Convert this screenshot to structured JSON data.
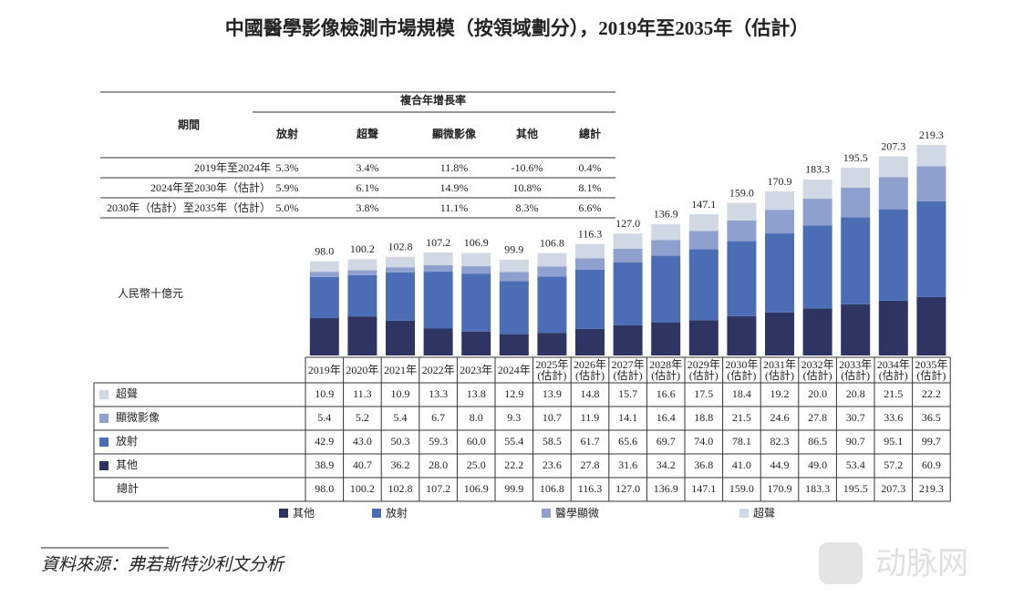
{
  "chart_data": {
    "type": "stacked-bar",
    "title": "中國醫學影像檢測市場規模（按領域劃分），2019年至2035年（估計）",
    "unit_label": "人民幣十億元",
    "categories": [
      "2019年",
      "2020年",
      "2021年",
      "2022年",
      "2023年",
      "2024年",
      "2025年(估計)",
      "2026年(估計)",
      "2027年(估計)",
      "2028年(估計)",
      "2029年(估計)",
      "2030年(估計)",
      "2031年(估計)",
      "2032年(估計)",
      "2033年(估計)",
      "2034年(估計)",
      "2035年(估計)"
    ],
    "series": [
      {
        "name": "其他",
        "table_label": "其他",
        "color": "#2e3563",
        "values": [
          38.9,
          40.7,
          36.2,
          28,
          25,
          22.2,
          23.6,
          27.8,
          31.6,
          34.2,
          36.8,
          41,
          44.9,
          49,
          53.4,
          57.2,
          60.9
        ],
        "value_labels": [
          "38.9",
          "40.7",
          "36.2",
          "28.0",
          "25.0",
          "22.2",
          "23.6",
          "27.8",
          "31.6",
          "34.2",
          "36.8",
          "41.0",
          "44.9",
          "49.0",
          "53.4",
          "57.2",
          "60.9"
        ]
      },
      {
        "name": "放射",
        "table_label": "放射",
        "color": "#4a6db5",
        "values": [
          42.9,
          43,
          50.3,
          59.3,
          60,
          55.4,
          58.5,
          61.7,
          65.6,
          69.7,
          74,
          78.1,
          82.3,
          86.5,
          90.7,
          95.1,
          99.7
        ],
        "value_labels": [
          "42.9",
          "43.0",
          "50.3",
          "59.3",
          "60.0",
          "55.4",
          "58.5",
          "61.7",
          "65.6",
          "69.7",
          "74.0",
          "78.1",
          "82.3",
          "86.5",
          "90.7",
          "95.1",
          "99.7"
        ]
      },
      {
        "name": "醫學顯微",
        "table_label": "顯微影像",
        "color": "#8fa0cf",
        "values": [
          5.4,
          5.2,
          5.4,
          6.7,
          8,
          9.3,
          10.7,
          11.9,
          14.1,
          16.4,
          18.8,
          21.5,
          24.6,
          27.8,
          30.7,
          33.6,
          36.5
        ],
        "value_labels": [
          "5.4",
          "5.2",
          "5.4",
          "6.7",
          "8.0",
          "9.3",
          "10.7",
          "11.9",
          "14.1",
          "16.4",
          "18.8",
          "21.5",
          "24.6",
          "27.8",
          "30.7",
          "33.6",
          "36.5"
        ]
      },
      {
        "name": "超聲",
        "table_label": "超聲",
        "color": "#cfd8e3",
        "values": [
          10.9,
          11.3,
          10.9,
          13.3,
          13.8,
          12.9,
          13.9,
          14.8,
          15.7,
          16.6,
          17.5,
          18.4,
          19.2,
          20,
          20.8,
          21.5,
          22.2
        ],
        "value_labels": [
          "10.9",
          "11.3",
          "10.9",
          "13.3",
          "13.8",
          "12.9",
          "13.9",
          "14.8",
          "15.7",
          "16.6",
          "17.5",
          "18.4",
          "19.2",
          "20.0",
          "20.8",
          "21.5",
          "22.2"
        ]
      }
    ],
    "total_label": "總計",
    "totals": [
      98,
      100.2,
      102.8,
      107.2,
      106.9,
      99.9,
      106.8,
      116.3,
      127,
      136.9,
      147.1,
      159,
      170.9,
      183.3,
      195.5,
      207.3,
      219.3
    ],
    "total_labels": [
      "98.0",
      "100.2",
      "102.8",
      "107.2",
      "106.9",
      "99.9",
      "106.8",
      "116.3",
      "127.0",
      "136.9",
      "147.1",
      "159.0",
      "170.9",
      "183.3",
      "195.5",
      "207.3",
      "219.3"
    ]
  },
  "cagr_table": {
    "group_header": "複合年增長率",
    "period_header": "期間",
    "columns": [
      "放射",
      "超聲",
      "顯微影像",
      "其他",
      "總計"
    ],
    "rows": [
      {
        "period": "2019年至2024年",
        "values": [
          "5.3%",
          "3.4%",
          "11.8%",
          "-10.6%",
          "0.4%"
        ]
      },
      {
        "period": "2024年至2030年（估計）",
        "values": [
          "5.9%",
          "6.1%",
          "14.9%",
          "10.8%",
          "8.1%"
        ]
      },
      {
        "period": "2030年（估計）至2035年（估計）",
        "values": [
          "5.0%",
          "3.8%",
          "11.1%",
          "8.3%",
          "6.6%"
        ]
      }
    ]
  },
  "source": "資料來源：弗若斯特沙利文分析",
  "watermark": "动脉网"
}
